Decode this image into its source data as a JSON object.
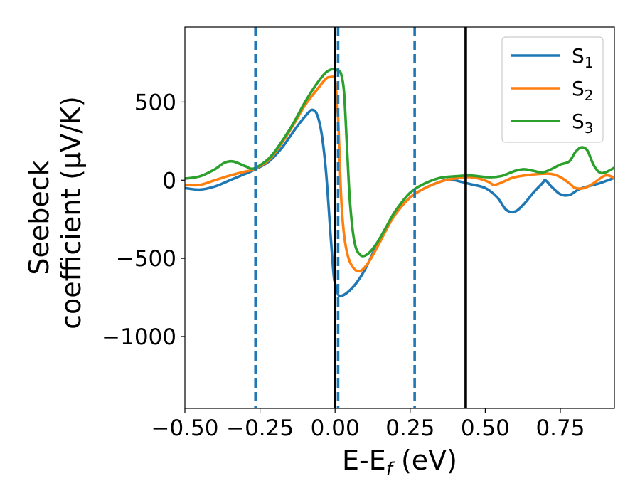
{
  "chart_data": {
    "type": "line",
    "xlabel": "E-Eƒ (eV)",
    "xlabel_parts": {
      "main": "E-E",
      "sub": "f",
      "unit": " (eV)"
    },
    "ylabel_lines": [
      "Seebeck",
      "coefficient  (μV/K)"
    ],
    "xlim": [
      -0.5,
      0.93
    ],
    "ylim": [
      -1460,
      980
    ],
    "x_ticks": [
      -0.5,
      -0.25,
      0.0,
      0.25,
      0.5,
      0.75
    ],
    "x_tick_labels": [
      "−0.50",
      "−0.25",
      "0.00",
      "0.25",
      "0.50",
      "0.75"
    ],
    "y_ticks": [
      -1000,
      -500,
      0,
      500
    ],
    "y_tick_labels": [
      "−1000",
      "−500",
      "0",
      "500"
    ],
    "grid": false,
    "legend_position": "top-right",
    "vlines": [
      {
        "x": -0.265,
        "style": "dashed",
        "color": "#1f77b4"
      },
      {
        "x": 0.0,
        "style": "solid",
        "color": "#000000"
      },
      {
        "x": 0.01,
        "style": "dashed",
        "color": "#1f77b4"
      },
      {
        "x": 0.265,
        "style": "dashed",
        "color": "#1f77b4"
      },
      {
        "x": 0.435,
        "style": "solid",
        "color": "#000000"
      }
    ],
    "series": [
      {
        "name": "S",
        "subscript": "1",
        "color": "#1f77b4",
        "points": [
          [
            -0.5,
            -50
          ],
          [
            -0.45,
            -60
          ],
          [
            -0.4,
            -40
          ],
          [
            -0.35,
            0
          ],
          [
            -0.3,
            40
          ],
          [
            -0.27,
            65
          ],
          [
            -0.22,
            120
          ],
          [
            -0.18,
            200
          ],
          [
            -0.15,
            280
          ],
          [
            -0.12,
            360
          ],
          [
            -0.09,
            430
          ],
          [
            -0.075,
            450
          ],
          [
            -0.06,
            420
          ],
          [
            -0.045,
            300
          ],
          [
            -0.03,
            50
          ],
          [
            -0.015,
            -350
          ],
          [
            -0.005,
            -600
          ],
          [
            0.0,
            -660
          ],
          [
            0.01,
            -730
          ],
          [
            0.02,
            -740
          ],
          [
            0.04,
            -720
          ],
          [
            0.07,
            -660
          ],
          [
            0.1,
            -570
          ],
          [
            0.13,
            -450
          ],
          [
            0.16,
            -340
          ],
          [
            0.2,
            -220
          ],
          [
            0.25,
            -110
          ],
          [
            0.3,
            -50
          ],
          [
            0.35,
            -10
          ],
          [
            0.38,
            5
          ],
          [
            0.42,
            -10
          ],
          [
            0.45,
            -25
          ],
          [
            0.5,
            -50
          ],
          [
            0.54,
            -110
          ],
          [
            0.57,
            -190
          ],
          [
            0.6,
            -200
          ],
          [
            0.63,
            -150
          ],
          [
            0.66,
            -80
          ],
          [
            0.69,
            -20
          ],
          [
            0.7,
            0
          ],
          [
            0.72,
            -40
          ],
          [
            0.75,
            -90
          ],
          [
            0.78,
            -95
          ],
          [
            0.81,
            -60
          ],
          [
            0.84,
            -40
          ],
          [
            0.88,
            -20
          ],
          [
            0.93,
            15
          ]
        ]
      },
      {
        "name": "S",
        "subscript": "2",
        "color": "#ff7f0e",
        "points": [
          [
            -0.5,
            -30
          ],
          [
            -0.45,
            -30
          ],
          [
            -0.4,
            0
          ],
          [
            -0.35,
            30
          ],
          [
            -0.3,
            55
          ],
          [
            -0.27,
            70
          ],
          [
            -0.22,
            130
          ],
          [
            -0.18,
            230
          ],
          [
            -0.14,
            350
          ],
          [
            -0.1,
            480
          ],
          [
            -0.06,
            580
          ],
          [
            -0.03,
            650
          ],
          [
            -0.015,
            660
          ],
          [
            -0.005,
            660
          ],
          [
            0.0,
            640
          ],
          [
            0.01,
            400
          ],
          [
            0.02,
            -100
          ],
          [
            0.03,
            -350
          ],
          [
            0.045,
            -500
          ],
          [
            0.065,
            -570
          ],
          [
            0.085,
            -580
          ],
          [
            0.11,
            -530
          ],
          [
            0.14,
            -430
          ],
          [
            0.17,
            -320
          ],
          [
            0.2,
            -220
          ],
          [
            0.25,
            -110
          ],
          [
            0.3,
            -50
          ],
          [
            0.35,
            -10
          ],
          [
            0.38,
            5
          ],
          [
            0.42,
            15
          ],
          [
            0.45,
            20
          ],
          [
            0.48,
            10
          ],
          [
            0.51,
            -10
          ],
          [
            0.53,
            -30
          ],
          [
            0.56,
            -10
          ],
          [
            0.59,
            15
          ],
          [
            0.63,
            30
          ],
          [
            0.68,
            40
          ],
          [
            0.72,
            40
          ],
          [
            0.75,
            20
          ],
          [
            0.78,
            -20
          ],
          [
            0.8,
            -50
          ],
          [
            0.83,
            -50
          ],
          [
            0.86,
            -20
          ],
          [
            0.9,
            30
          ],
          [
            0.93,
            15
          ]
        ]
      },
      {
        "name": "S",
        "subscript": "3",
        "color": "#2ca02c",
        "points": [
          [
            -0.5,
            10
          ],
          [
            -0.45,
            25
          ],
          [
            -0.4,
            70
          ],
          [
            -0.37,
            110
          ],
          [
            -0.34,
            120
          ],
          [
            -0.3,
            90
          ],
          [
            -0.27,
            75
          ],
          [
            -0.22,
            140
          ],
          [
            -0.18,
            240
          ],
          [
            -0.14,
            360
          ],
          [
            -0.1,
            500
          ],
          [
            -0.06,
            620
          ],
          [
            -0.03,
            690
          ],
          [
            -0.01,
            710
          ],
          [
            0.0,
            710
          ],
          [
            0.01,
            700
          ],
          [
            0.02,
            680
          ],
          [
            0.03,
            560
          ],
          [
            0.04,
            200
          ],
          [
            0.05,
            -150
          ],
          [
            0.065,
            -400
          ],
          [
            0.085,
            -480
          ],
          [
            0.11,
            -470
          ],
          [
            0.14,
            -400
          ],
          [
            0.17,
            -300
          ],
          [
            0.2,
            -200
          ],
          [
            0.25,
            -80
          ],
          [
            0.3,
            -20
          ],
          [
            0.35,
            15
          ],
          [
            0.4,
            25
          ],
          [
            0.45,
            30
          ],
          [
            0.5,
            20
          ],
          [
            0.53,
            20
          ],
          [
            0.56,
            30
          ],
          [
            0.6,
            60
          ],
          [
            0.63,
            70
          ],
          [
            0.66,
            60
          ],
          [
            0.69,
            50
          ],
          [
            0.72,
            70
          ],
          [
            0.75,
            100
          ],
          [
            0.78,
            120
          ],
          [
            0.8,
            180
          ],
          [
            0.82,
            210
          ],
          [
            0.84,
            190
          ],
          [
            0.86,
            100
          ],
          [
            0.88,
            50
          ],
          [
            0.9,
            50
          ],
          [
            0.93,
            80
          ]
        ]
      }
    ]
  }
}
